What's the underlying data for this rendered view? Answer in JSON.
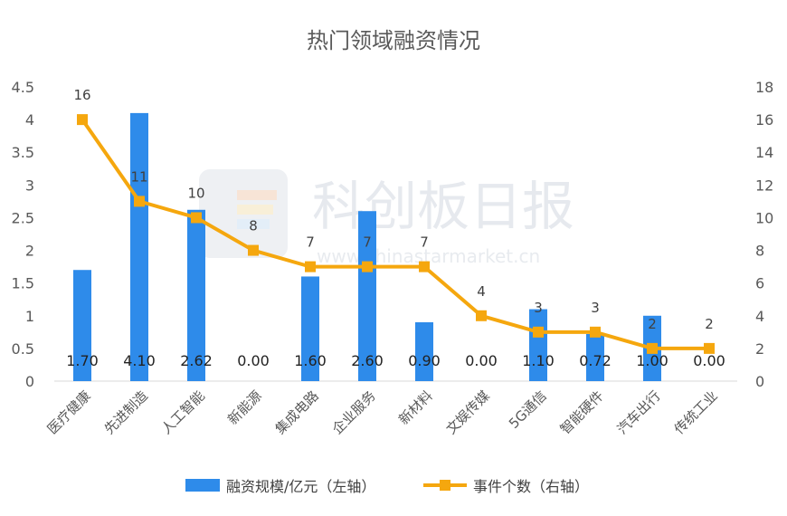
{
  "chart_data": {
    "type": "bar",
    "title": "热门领域融资情况",
    "categories": [
      "医疗健康",
      "先进制造",
      "人工智能",
      "新能源",
      "集成电路",
      "企业服务",
      "新材料",
      "文娱传媒",
      "5G通信",
      "智能硬件",
      "汽车出行",
      "传统工业"
    ],
    "series": [
      {
        "name": "融资规模/亿元（左轴）",
        "type": "bar",
        "axis": "left",
        "color": "#2e8bea",
        "values": [
          1.7,
          4.1,
          2.62,
          0.0,
          1.6,
          2.6,
          0.9,
          0.0,
          1.1,
          0.72,
          1.0,
          0.0
        ],
        "labels": [
          "1.70",
          "4.10",
          "2.62",
          "0.00",
          "1.60",
          "2.60",
          "0.90",
          "0.00",
          "1.10",
          "0.72",
          "1.00",
          "0.00"
        ]
      },
      {
        "name": "事件个数（右轴）",
        "type": "line",
        "axis": "right",
        "color": "#f5a70e",
        "values": [
          16,
          11,
          10,
          8,
          7,
          7,
          7,
          4,
          3,
          3,
          2,
          2
        ],
        "labels": [
          "16",
          "11",
          "10",
          "8",
          "7",
          "7",
          "7",
          "4",
          "3",
          "3",
          "2",
          "2"
        ]
      }
    ],
    "y_left": {
      "min": 0,
      "max": 4.5,
      "ticks": [
        "0",
        "0.5",
        "1",
        "1.5",
        "2",
        "2.5",
        "3",
        "3.5",
        "4",
        "4.5"
      ]
    },
    "y_right": {
      "min": 0,
      "max": 18,
      "ticks": [
        "0",
        "2",
        "4",
        "6",
        "8",
        "10",
        "12",
        "14",
        "16",
        "18"
      ]
    },
    "grid": false,
    "legend_position": "bottom"
  },
  "watermark": {
    "text": "科创板日报",
    "url": "www.chinastarmarket.cn"
  }
}
